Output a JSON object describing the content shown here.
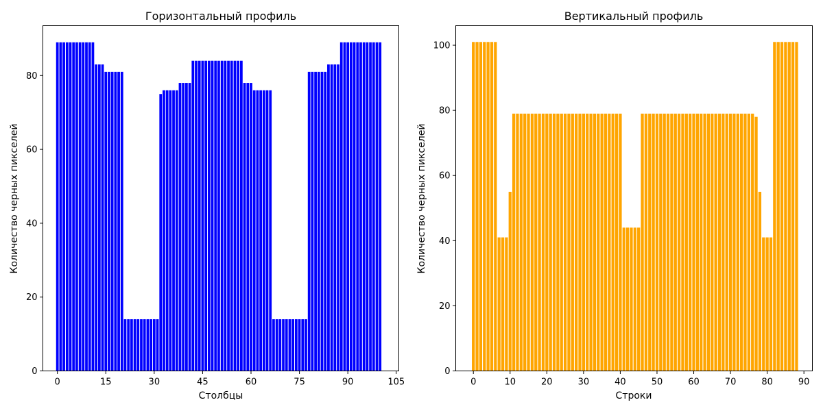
{
  "chart_data": [
    {
      "type": "bar",
      "title": "Горизонтальный профиль",
      "xlabel": "Столбцы",
      "ylabel": "Количество черных пикселей",
      "color": "#0000ff",
      "xlim": [
        -4.5,
        105.8
      ],
      "ylim": [
        0,
        93.5
      ],
      "xticks": [
        0,
        15,
        30,
        45,
        60,
        75,
        90,
        105
      ],
      "yticks": [
        0,
        20,
        40,
        60,
        80
      ],
      "x": [
        0,
        1,
        2,
        3,
        4,
        5,
        6,
        7,
        8,
        9,
        10,
        11,
        12,
        13,
        14,
        15,
        16,
        17,
        18,
        19,
        20,
        21,
        22,
        23,
        24,
        25,
        26,
        27,
        28,
        29,
        30,
        31,
        32,
        33,
        34,
        35,
        36,
        37,
        38,
        39,
        40,
        41,
        42,
        43,
        44,
        45,
        46,
        47,
        48,
        49,
        50,
        51,
        52,
        53,
        54,
        55,
        56,
        57,
        58,
        59,
        60,
        61,
        62,
        63,
        64,
        65,
        66,
        67,
        68,
        69,
        70,
        71,
        72,
        73,
        74,
        75,
        76,
        77,
        78,
        79,
        80,
        81,
        82,
        83,
        84,
        85,
        86,
        87,
        88,
        89,
        90,
        91,
        92,
        93,
        94,
        95,
        96,
        97,
        98,
        99,
        100
      ],
      "values": [
        89,
        89,
        89,
        89,
        89,
        89,
        89,
        89,
        89,
        89,
        89,
        89,
        83,
        83,
        83,
        81,
        81,
        81,
        81,
        81,
        81,
        14,
        14,
        14,
        14,
        14,
        14,
        14,
        14,
        14,
        14,
        14,
        75,
        76,
        76,
        76,
        76,
        76,
        78,
        78,
        78,
        78,
        84,
        84,
        84,
        84,
        84,
        84,
        84,
        84,
        84,
        84,
        84,
        84,
        84,
        84,
        84,
        84,
        78,
        78,
        78,
        76,
        76,
        76,
        76,
        76,
        76,
        14,
        14,
        14,
        14,
        14,
        14,
        14,
        14,
        14,
        14,
        14,
        81,
        81,
        81,
        81,
        81,
        81,
        83,
        83,
        83,
        83,
        89,
        89,
        89,
        89,
        89,
        89,
        89,
        89,
        89,
        89,
        89,
        89,
        89
      ]
    },
    {
      "type": "bar",
      "title": "Вертикальный профиль",
      "xlabel": "Строки",
      "ylabel": "Количество черных пикселей",
      "color": "#ffa500",
      "xlim": [
        -4.8,
        92.3
      ],
      "ylim": [
        0,
        106
      ],
      "xticks": [
        0,
        10,
        20,
        30,
        40,
        50,
        60,
        70,
        80,
        90
      ],
      "yticks": [
        0,
        20,
        40,
        60,
        80,
        100
      ],
      "x": [
        0,
        1,
        2,
        3,
        4,
        5,
        6,
        7,
        8,
        9,
        10,
        11,
        12,
        13,
        14,
        15,
        16,
        17,
        18,
        19,
        20,
        21,
        22,
        23,
        24,
        25,
        26,
        27,
        28,
        29,
        30,
        31,
        32,
        33,
        34,
        35,
        36,
        37,
        38,
        39,
        40,
        41,
        42,
        43,
        44,
        45,
        46,
        47,
        48,
        49,
        50,
        51,
        52,
        53,
        54,
        55,
        56,
        57,
        58,
        59,
        60,
        61,
        62,
        63,
        64,
        65,
        66,
        67,
        68,
        69,
        70,
        71,
        72,
        73,
        74,
        75,
        76,
        77,
        78,
        79,
        80,
        81,
        82,
        83,
        84,
        85,
        86,
        87,
        88
      ],
      "values": [
        101,
        101,
        101,
        101,
        101,
        101,
        101,
        41,
        41,
        41,
        55,
        79,
        79,
        79,
        79,
        79,
        79,
        79,
        79,
        79,
        79,
        79,
        79,
        79,
        79,
        79,
        79,
        79,
        79,
        79,
        79,
        79,
        79,
        79,
        79,
        79,
        79,
        79,
        79,
        79,
        79,
        44,
        44,
        44,
        44,
        44,
        79,
        79,
        79,
        79,
        79,
        79,
        79,
        79,
        79,
        79,
        79,
        79,
        79,
        79,
        79,
        79,
        79,
        79,
        79,
        79,
        79,
        79,
        79,
        79,
        79,
        79,
        79,
        79,
        79,
        79,
        79,
        78,
        55,
        41,
        41,
        41,
        101,
        101,
        101,
        101,
        101,
        101,
        101
      ]
    }
  ]
}
